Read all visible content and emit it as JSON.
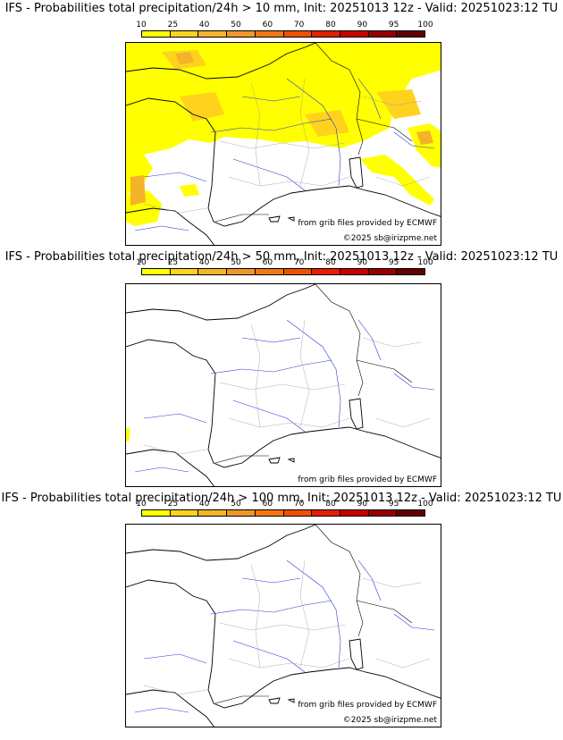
{
  "colorbar": {
    "ticks": [
      "10",
      "25",
      "40",
      "50",
      "60",
      "70",
      "80",
      "90",
      "95",
      "100"
    ],
    "colors": [
      "#ffff00",
      "#ffd21e",
      "#f5b428",
      "#f09628",
      "#f07814",
      "#f05000",
      "#e61e00",
      "#c80000",
      "#960000",
      "#640000"
    ]
  },
  "panels": [
    {
      "title": "IFS - Probabilities total precipitation/24h > 10 mm, Init: 20251013 12z - Valid: 20251023:12 TU",
      "credit_source": "from grib files provided by ECMWF",
      "credit_copyright": "©2025 sb@irizpme.net"
    },
    {
      "title": "IFS - Probabilities total precipitation/24h > 50 mm, Init: 20251013 12z - Valid: 20251023:12 TU",
      "credit_source": "from grib files provided by ECMWF",
      "credit_copyright": ""
    },
    {
      "title": "IFS - Probabilities total precipitation/24h > 100 mm, Init: 20251013 12z - Valid: 20251023:12 TU",
      "credit_source": "from grib files provided by ECMWF",
      "credit_copyright": "©2025 sb@irizpme.net"
    }
  ]
}
